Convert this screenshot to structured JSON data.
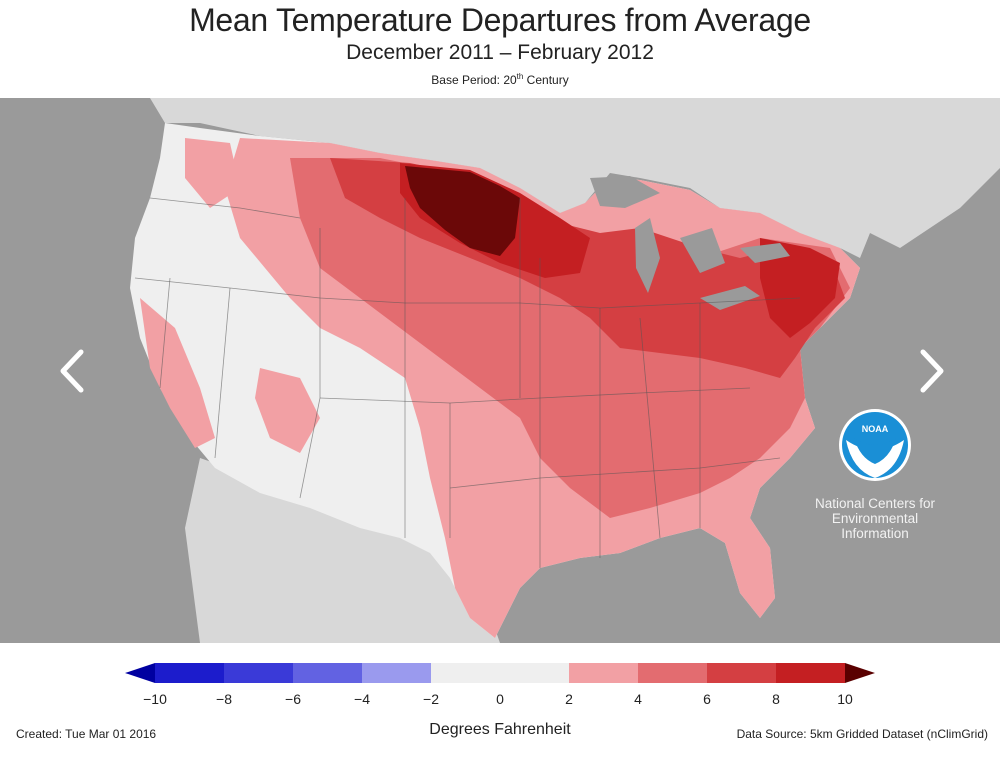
{
  "header": {
    "title": "Mean Temperature Departures from Average",
    "subtitle": "December 2011 – February 2012",
    "base_period_prefix": "Base Period: 20",
    "base_period_sup": "th",
    "base_period_suffix": " Century"
  },
  "navigation": {
    "prev_icon": "chevron-left-icon",
    "next_icon": "chevron-right-icon"
  },
  "logo": {
    "badge_text": "NOAA",
    "caption_line1": "National Centers for",
    "caption_line2": "Environmental",
    "caption_line3": "Information"
  },
  "legend": {
    "ticks": [
      "−10",
      "−8",
      "−6",
      "−4",
      "−2",
      "0",
      "2",
      "4",
      "6",
      "8",
      "10"
    ],
    "tick_values": [
      -10,
      -8,
      -6,
      -4,
      -2,
      0,
      2,
      4,
      6,
      8,
      10
    ],
    "bins": [
      {
        "from": -10,
        "to": -8,
        "color": "#1c1ccc"
      },
      {
        "from": -8,
        "to": -6,
        "color": "#3a3ad8"
      },
      {
        "from": -6,
        "to": -4,
        "color": "#6262e2"
      },
      {
        "from": -4,
        "to": -2,
        "color": "#9a9aee"
      },
      {
        "from": -2,
        "to": 2,
        "color": "#efefef"
      },
      {
        "from": 2,
        "to": 4,
        "color": "#f2a0a4"
      },
      {
        "from": 4,
        "to": 6,
        "color": "#e36c70"
      },
      {
        "from": 6,
        "to": 8,
        "color": "#d43f42"
      },
      {
        "from": 8,
        "to": 10,
        "color": "#c41f22"
      }
    ],
    "low_end_color": "#0000a0",
    "high_end_color": "#5a0000",
    "units": "Degrees Fahrenheit"
  },
  "footer": {
    "created": "Created: Tue Mar 01 2016",
    "source": "Data Source: 5km Gridded Dataset (nClimGrid)"
  },
  "colors": {
    "ocean": "#9a9a9a",
    "neighbor_land": "#d8d8d8",
    "near_normal": "#efefef",
    "anomaly_2_4": "#f2a0a4",
    "anomaly_4_6": "#e36c70",
    "anomaly_6_8": "#d43f42",
    "anomaly_8_10": "#c41f22",
    "anomaly_over_10": "#6b0808",
    "noaa_blue": "#1a8fd6"
  }
}
